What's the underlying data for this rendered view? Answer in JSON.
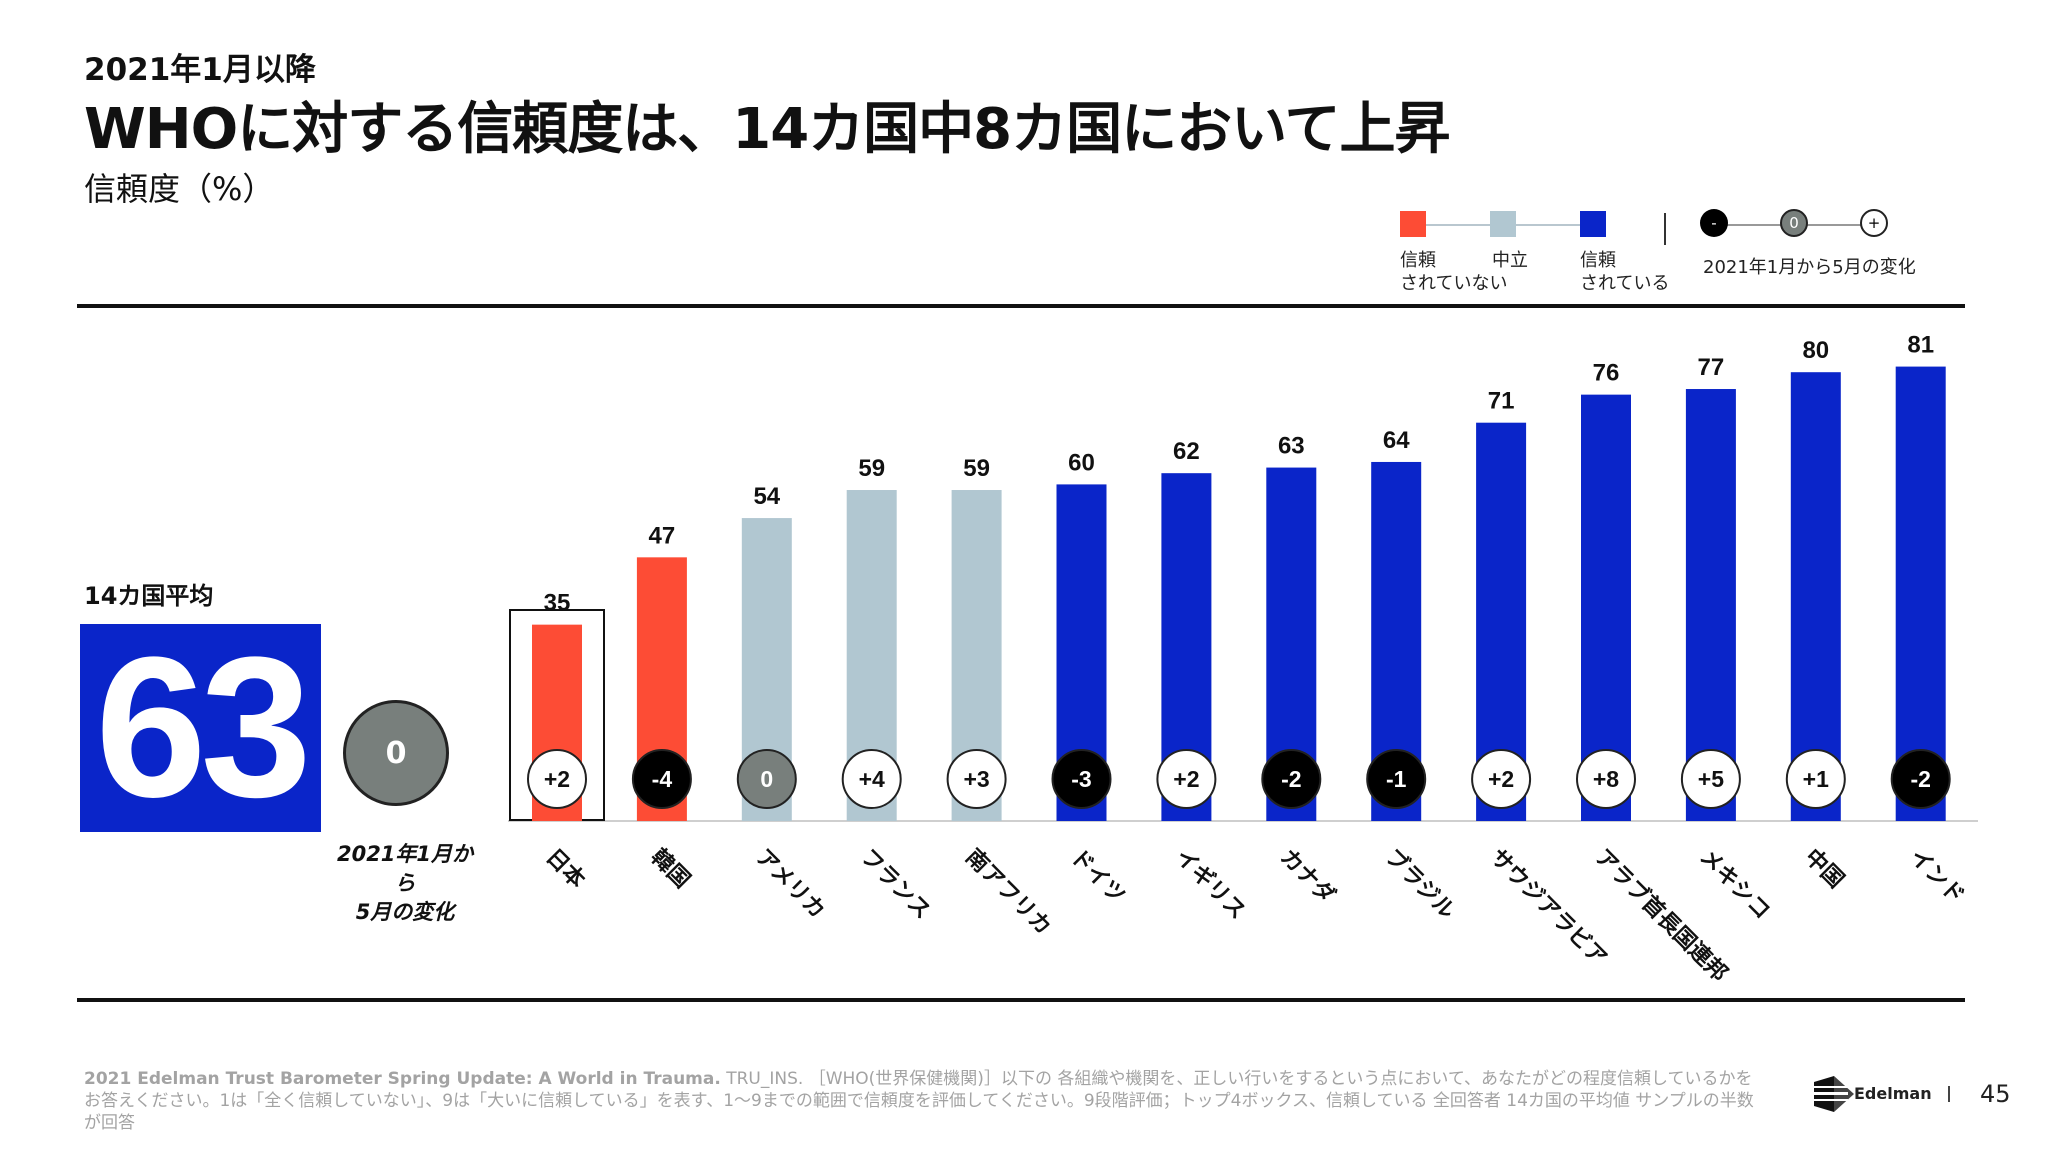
{
  "header": {
    "pretitle": "2021年1月以降",
    "title": "WHOに対する信頼度は、14カ国中8カ国において上昇",
    "subtitle": "信頼度（%）"
  },
  "legend": {
    "not_trusted": "信頼\nされていない",
    "neutral": "中立",
    "trusted": "信頼\nされている",
    "change_minus": "-",
    "change_zero": "0",
    "change_plus": "+",
    "change_label": "2021年1月から5月の変化"
  },
  "average": {
    "label": "14カ国平均",
    "value": "63",
    "change": "0",
    "change_label": "2021年1月から\n5月の変化"
  },
  "colors": {
    "distrust": "#fd4c35",
    "neutral": "#b1c7d1",
    "trust": "#0a25c9",
    "change_negative": "#000000",
    "change_zero": "#787f7c",
    "change_positive": "#ffffff"
  },
  "chart_data": {
    "type": "bar",
    "categories": [
      "日本",
      "韓国",
      "アメリカ",
      "フランス",
      "南アフリカ",
      "ドイツ",
      "イギリス",
      "カナダ",
      "ブラジル",
      "サウジアラビア",
      "アラブ首長国連邦",
      "メキシコ",
      "中国",
      "インド"
    ],
    "values": [
      35,
      47,
      54,
      59,
      59,
      60,
      62,
      63,
      64,
      71,
      76,
      77,
      80,
      81
    ],
    "trust_level": [
      "distrust",
      "distrust",
      "neutral",
      "neutral",
      "neutral",
      "trust",
      "trust",
      "trust",
      "trust",
      "trust",
      "trust",
      "trust",
      "trust",
      "trust"
    ],
    "changes": [
      "+2",
      "-4",
      "0",
      "+4",
      "+3",
      "-3",
      "+2",
      "-2",
      "-1",
      "+2",
      "+8",
      "+5",
      "+1",
      "-2"
    ],
    "highlighted": "日本"
  },
  "footer": {
    "source_bold": "2021 Edelman Trust Barometer Spring Update: A World in Trauma.",
    "source_text": " TRU_INS. ［WHO(世界保健機関)］以下の 各組織や機関を、正しい行いをするという点において、あなたがどの程度信頼しているかを",
    "source_text2": "お答えください。1は「全く信頼していない」、9は「大いに信頼している」を表す、1〜9までの範囲で信頼度を評価してください。9段階評価；トップ4ボックス、信頼している 全回答者 14カ国の平均値 サンプルの半数が回答",
    "brand": "Edelman",
    "page": "45"
  }
}
